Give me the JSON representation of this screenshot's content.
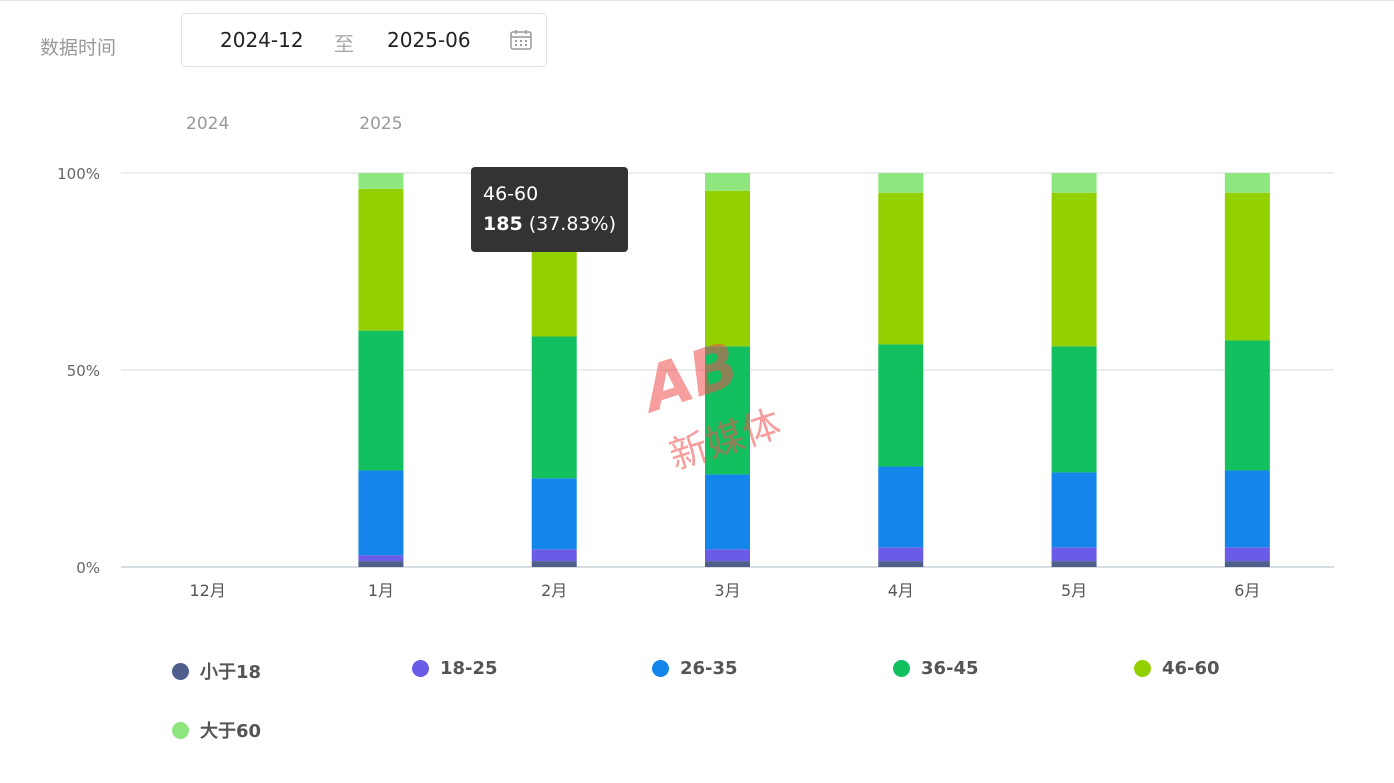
{
  "filter": {
    "label": "数据时间",
    "start": "2024-12",
    "separator": "至",
    "end": "2025-06",
    "icon": "calendar-icon"
  },
  "tooltip": {
    "title": "46-60",
    "value": "185",
    "percent": "(37.83%)"
  },
  "watermark": {
    "logo": "AB",
    "text": "新媒体"
  },
  "chart_data": {
    "type": "bar",
    "stacked": true,
    "normalized": true,
    "year_labels": [
      {
        "label": "2024",
        "category_index": 0
      },
      {
        "label": "2025",
        "category_index": 1
      }
    ],
    "categories": [
      "12月",
      "1月",
      "2月",
      "3月",
      "4月",
      "5月",
      "6月"
    ],
    "y_ticks": [
      "0%",
      "50%",
      "100%"
    ],
    "ylim": [
      0,
      100
    ],
    "grid": true,
    "legend_position": "bottom",
    "series": [
      {
        "name": "小于18",
        "color": "#4e5f8c",
        "values": [
          null,
          1.5,
          1.5,
          1.5,
          1.5,
          1.5,
          1.5
        ]
      },
      {
        "name": "18-25",
        "color": "#6b5ce7",
        "values": [
          null,
          1.5,
          3.0,
          3.0,
          3.5,
          3.5,
          3.5
        ]
      },
      {
        "name": "26-35",
        "color": "#1485eb",
        "values": [
          null,
          21.5,
          18.0,
          19.0,
          20.5,
          19.0,
          19.5
        ]
      },
      {
        "name": "36-45",
        "color": "#13c060",
        "values": [
          null,
          35.5,
          36.0,
          32.5,
          31.0,
          32.0,
          33.0
        ]
      },
      {
        "name": "46-60",
        "color": "#92d000",
        "values": [
          null,
          36.0,
          37.83,
          39.5,
          38.5,
          39.0,
          37.5
        ]
      },
      {
        "name": "大于60",
        "color": "#8ee77e",
        "values": [
          null,
          4.0,
          3.67,
          4.5,
          5.0,
          5.0,
          5.0
        ]
      }
    ]
  }
}
